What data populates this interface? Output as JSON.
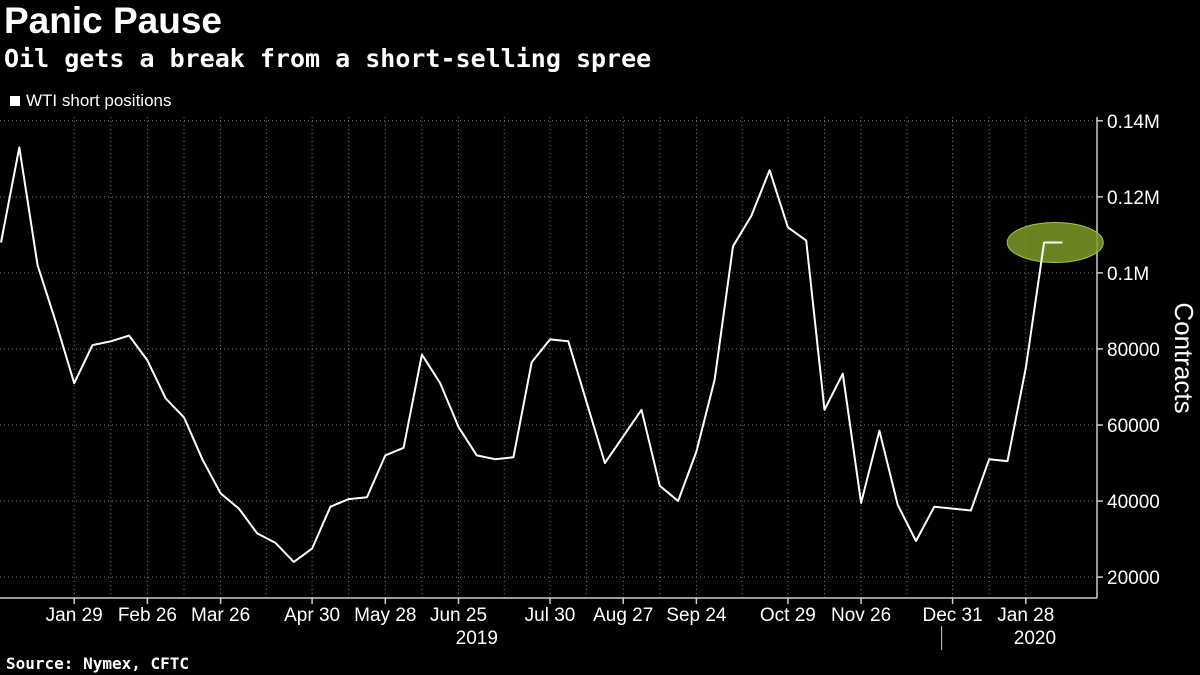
{
  "title": "Panic Pause",
  "subtitle": "Oil gets a break from a short-selling spree",
  "source": "Source: Nymex, CFTC",
  "colors": {
    "background": "#000000",
    "line": "#ffffff",
    "highlight": "#7f9a2a",
    "grid": "#7a7a7a"
  },
  "chart_data": {
    "type": "line",
    "series": [
      {
        "name": "WTI short positions",
        "values": [
          108000,
          133000,
          102000,
          87000,
          71000,
          81000,
          82000,
          83500,
          77000,
          67000,
          62000,
          51000,
          42000,
          38000,
          31500,
          29000,
          24000,
          27500,
          38500,
          40500,
          41000,
          52000,
          54000,
          78500,
          71000,
          59500,
          52000,
          51000,
          51500,
          76500,
          82500,
          82000,
          66000,
          50000,
          57000,
          64000,
          44000,
          40000,
          53000,
          72000,
          107000,
          115000,
          127000,
          112000,
          108500,
          64000,
          73500,
          39500,
          58500,
          39000,
          29500,
          38500,
          38000,
          37500,
          51000,
          50500,
          75000,
          108000,
          108000
        ]
      }
    ],
    "x_tick_labels": [
      "Jan 29",
      "Feb 26",
      "Mar 26",
      "Apr 30",
      "May 28",
      "Jun 25",
      "Jul 30",
      "Aug 27",
      "Sep 24",
      "Oct 29",
      "Nov 26",
      "Dec 31",
      "Jan 28"
    ],
    "x_tick_index": [
      4,
      8,
      12,
      17,
      21,
      25,
      30,
      34,
      38,
      43,
      47,
      52,
      56
    ],
    "year_labels": [
      {
        "label": "2019",
        "index": 26
      },
      {
        "label": "2020",
        "index": 56.5
      }
    ],
    "y_ticks": [
      20000,
      40000,
      60000,
      80000,
      100000,
      120000,
      140000
    ],
    "y_tick_labels": [
      "20000",
      "40000",
      "60000",
      "80000",
      "0.1M",
      "0.12M",
      "0.14M"
    ],
    "ylim": [
      14500,
      141000
    ],
    "ylabel": "Contracts",
    "xlabel": "",
    "highlight_last_point": true,
    "grid": true,
    "legend_position": "top-left"
  }
}
